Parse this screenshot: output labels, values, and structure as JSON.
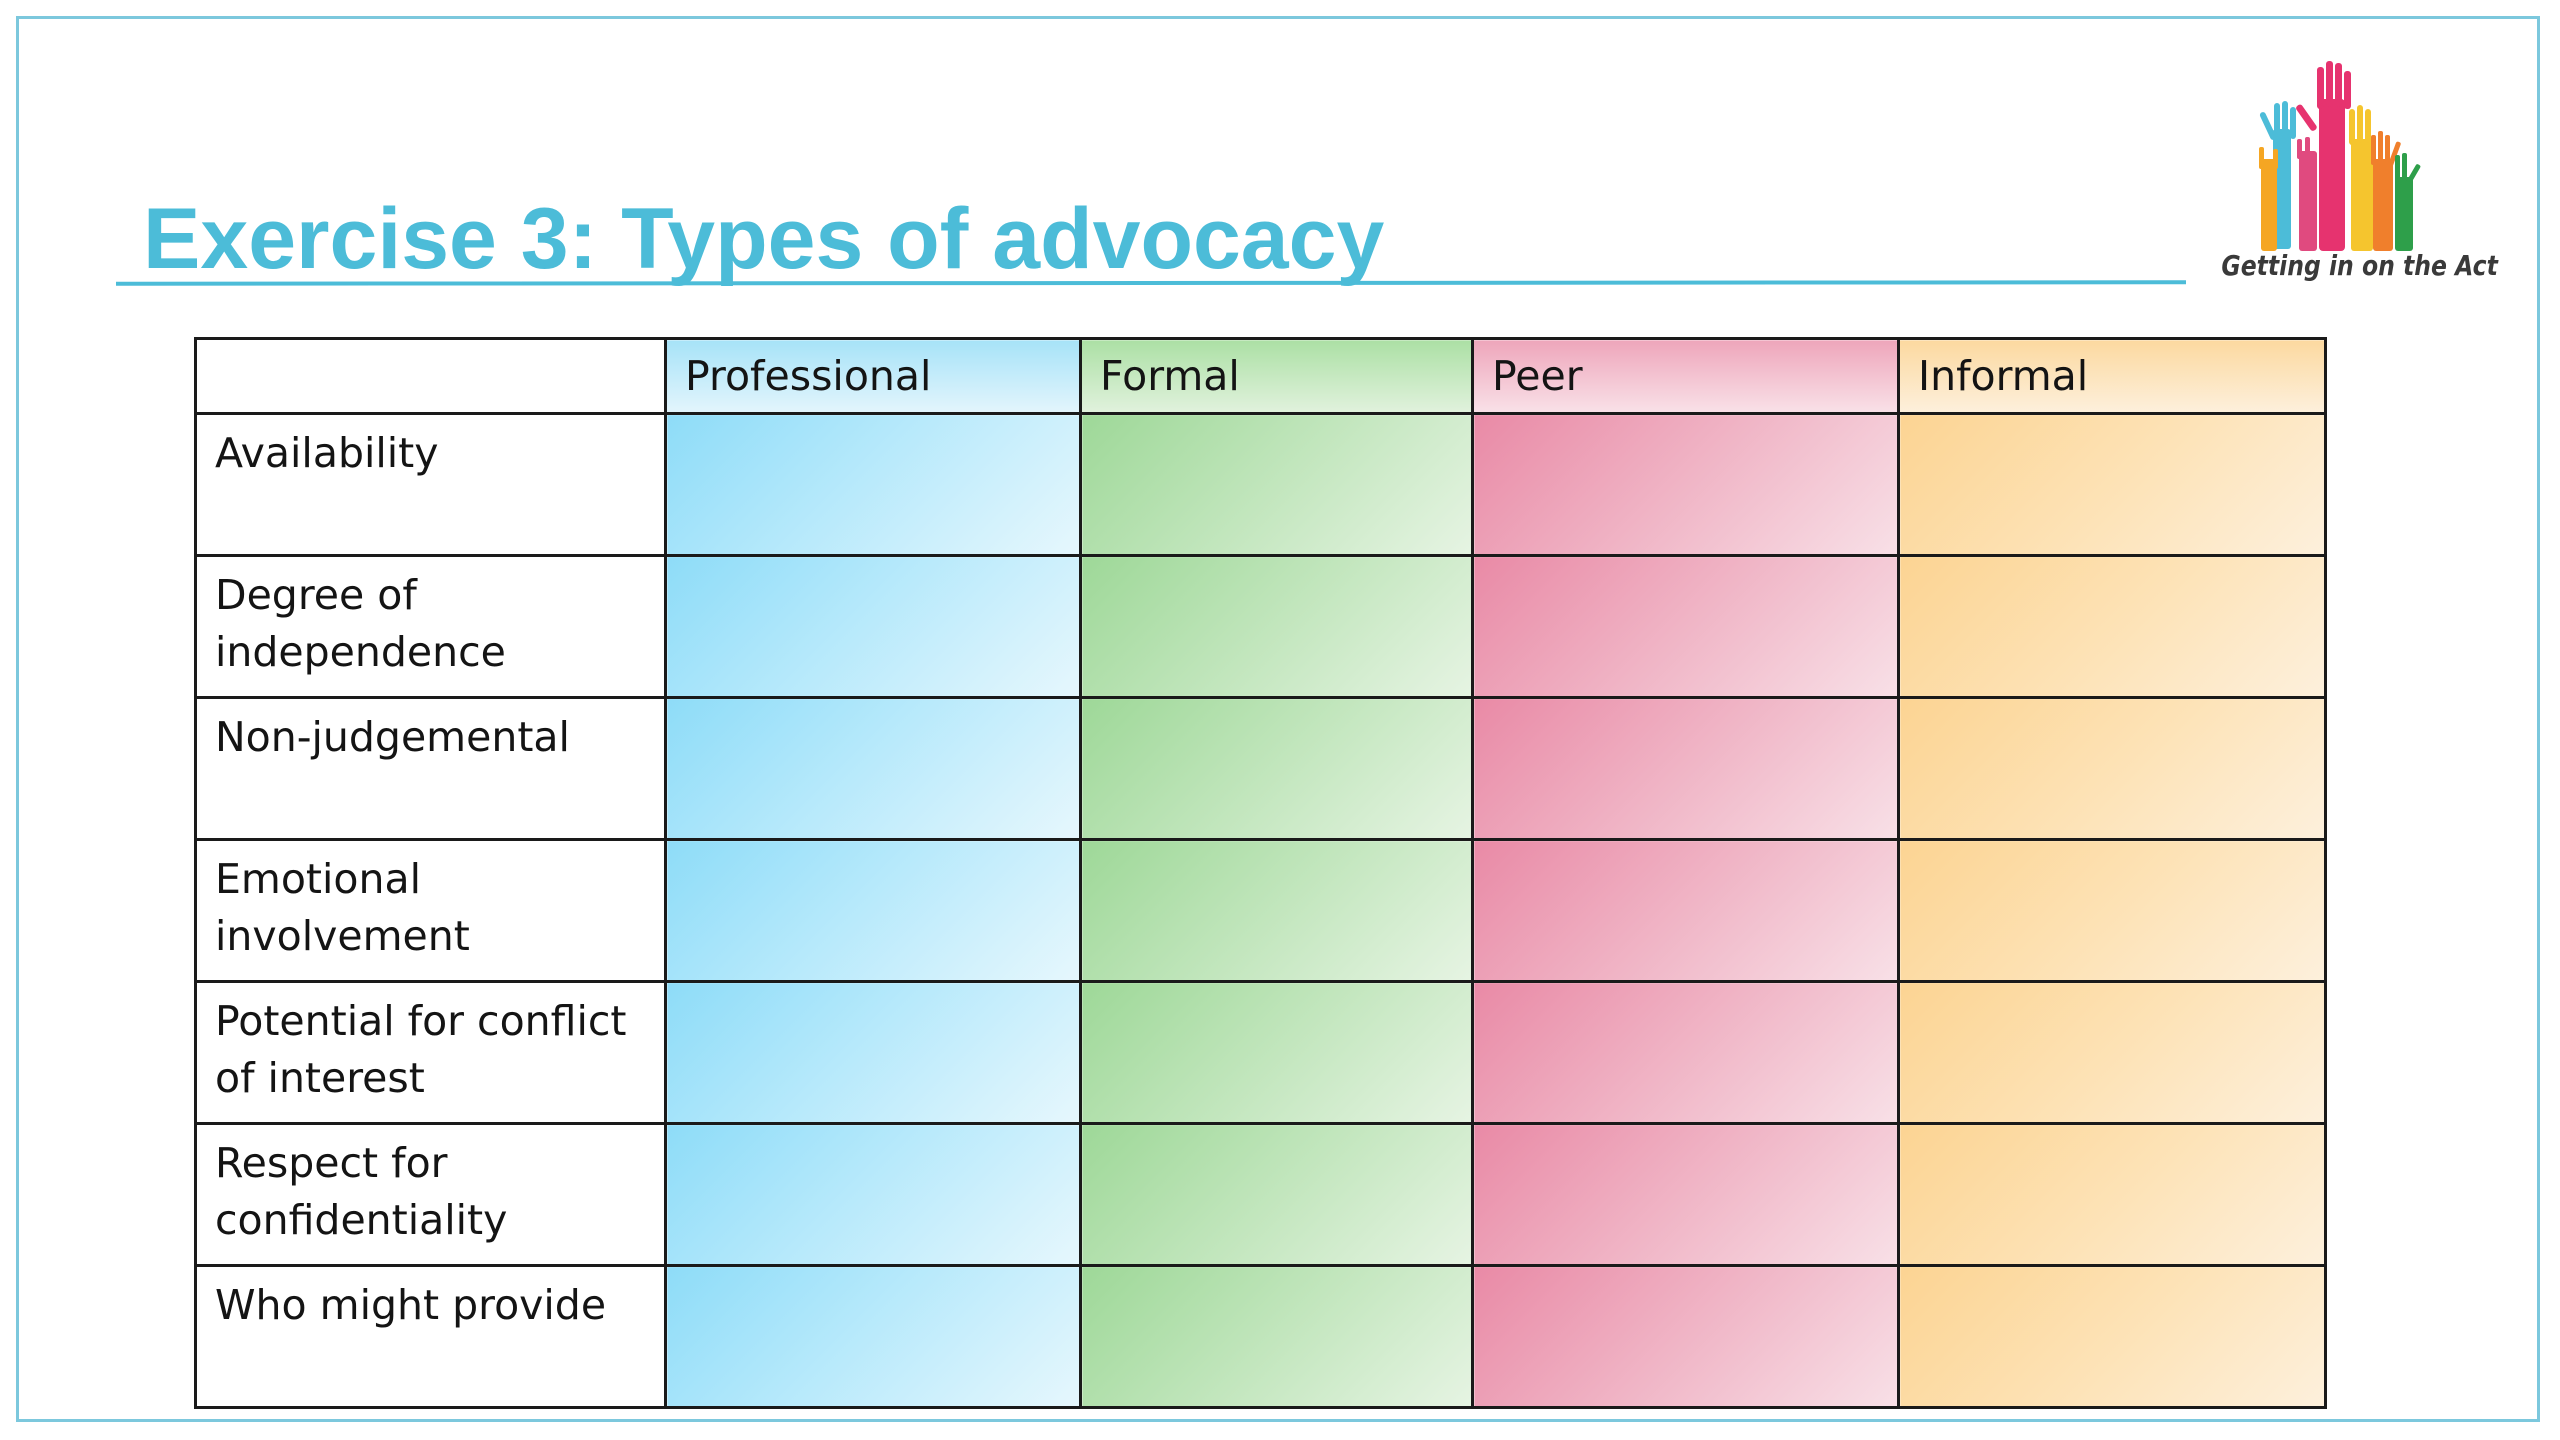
{
  "slide": {
    "title": "Exercise 3: Types of advocacy",
    "accent_color": "#4cbcd8"
  },
  "logo": {
    "caption": "Getting in on the Act",
    "icon": "raised-hands-icon",
    "hand_colors": [
      "#4cbcd8",
      "#e6336f",
      "#f5c52e",
      "#f4a23b",
      "#f07f2c",
      "#6bbf4a",
      "#2e9f4a"
    ]
  },
  "table": {
    "columns": [
      {
        "label": "Professional",
        "color": "#8edcf8"
      },
      {
        "label": "Formal",
        "color": "#9ed898"
      },
      {
        "label": "Peer",
        "color": "#e98aa6"
      },
      {
        "label": "Informal",
        "color": "#fcd493"
      }
    ],
    "rows": [
      {
        "label": "Availability"
      },
      {
        "label": "Degree of independence"
      },
      {
        "label": "Non-judgemental"
      },
      {
        "label": "Emotional involvement"
      },
      {
        "label": "Potential for conflict of interest"
      },
      {
        "label": "Respect for confidentiality"
      },
      {
        "label": "Who might provide"
      }
    ]
  }
}
